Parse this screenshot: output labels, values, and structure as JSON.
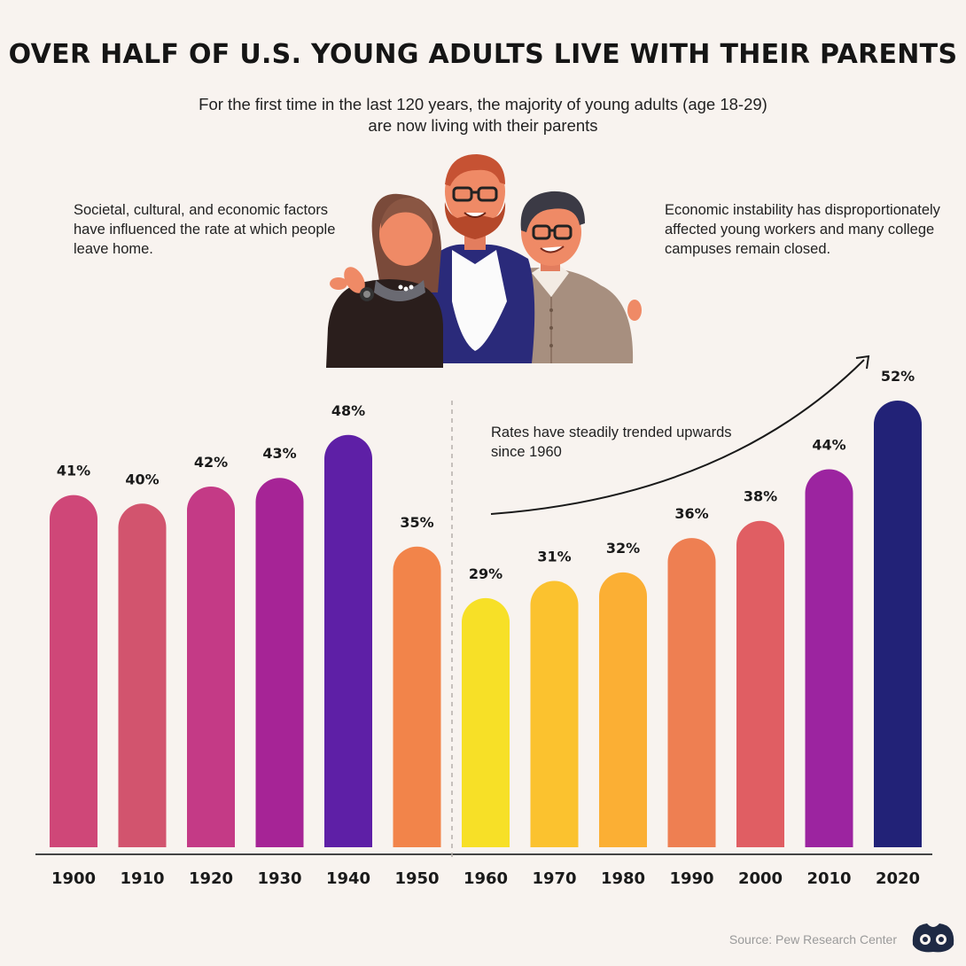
{
  "title": "OVER HALF OF U.S. YOUNG ADULTS LIVE WITH THEIR PARENTS",
  "subtitle_line1": "For the first time in the last 120 years, the majority of young adults (age 18-29)",
  "subtitle_line2": "are now living with their parents",
  "note_left": "Societal, cultural, and economic factors have influenced the rate at which people leave home.",
  "note_right": "Economic instability has disproportionately affected young workers and many college campuses remain closed.",
  "note_trend": "Rates have steadily trended upwards since 1960",
  "source": "Source: Pew Research Center",
  "icons": [
    "family-illustration",
    "trend-arrow-icon",
    "logo-icon"
  ],
  "colors": {
    "background": "#f8f3ef",
    "bars": [
      "#cf4778",
      "#d2546e",
      "#c43a86",
      "#a62496",
      "#5e1fa6",
      "#f2844a",
      "#f7e027",
      "#fbc22f",
      "#fbaf34",
      "#ee7f52",
      "#e05e63",
      "#9c24a0",
      "#222277"
    ]
  },
  "chart_data": {
    "type": "bar",
    "categories": [
      "1900",
      "1910",
      "1920",
      "1930",
      "1940",
      "1950",
      "1960",
      "1970",
      "1980",
      "1990",
      "2000",
      "2010",
      "2020"
    ],
    "values": [
      41,
      40,
      42,
      43,
      48,
      35,
      29,
      31,
      32,
      36,
      38,
      44,
      52
    ],
    "data_labels": [
      "41%",
      "40%",
      "42%",
      "43%",
      "48%",
      "35%",
      "29%",
      "31%",
      "32%",
      "36%",
      "38%",
      "44%",
      "52%"
    ],
    "title": "OVER HALF OF U.S. YOUNG ADULTS LIVE WITH THEIR PARENTS",
    "xlabel": "",
    "ylabel": "",
    "ylim": [
      0,
      52
    ],
    "unit": "%",
    "grid": false,
    "divider_after": "1950"
  }
}
